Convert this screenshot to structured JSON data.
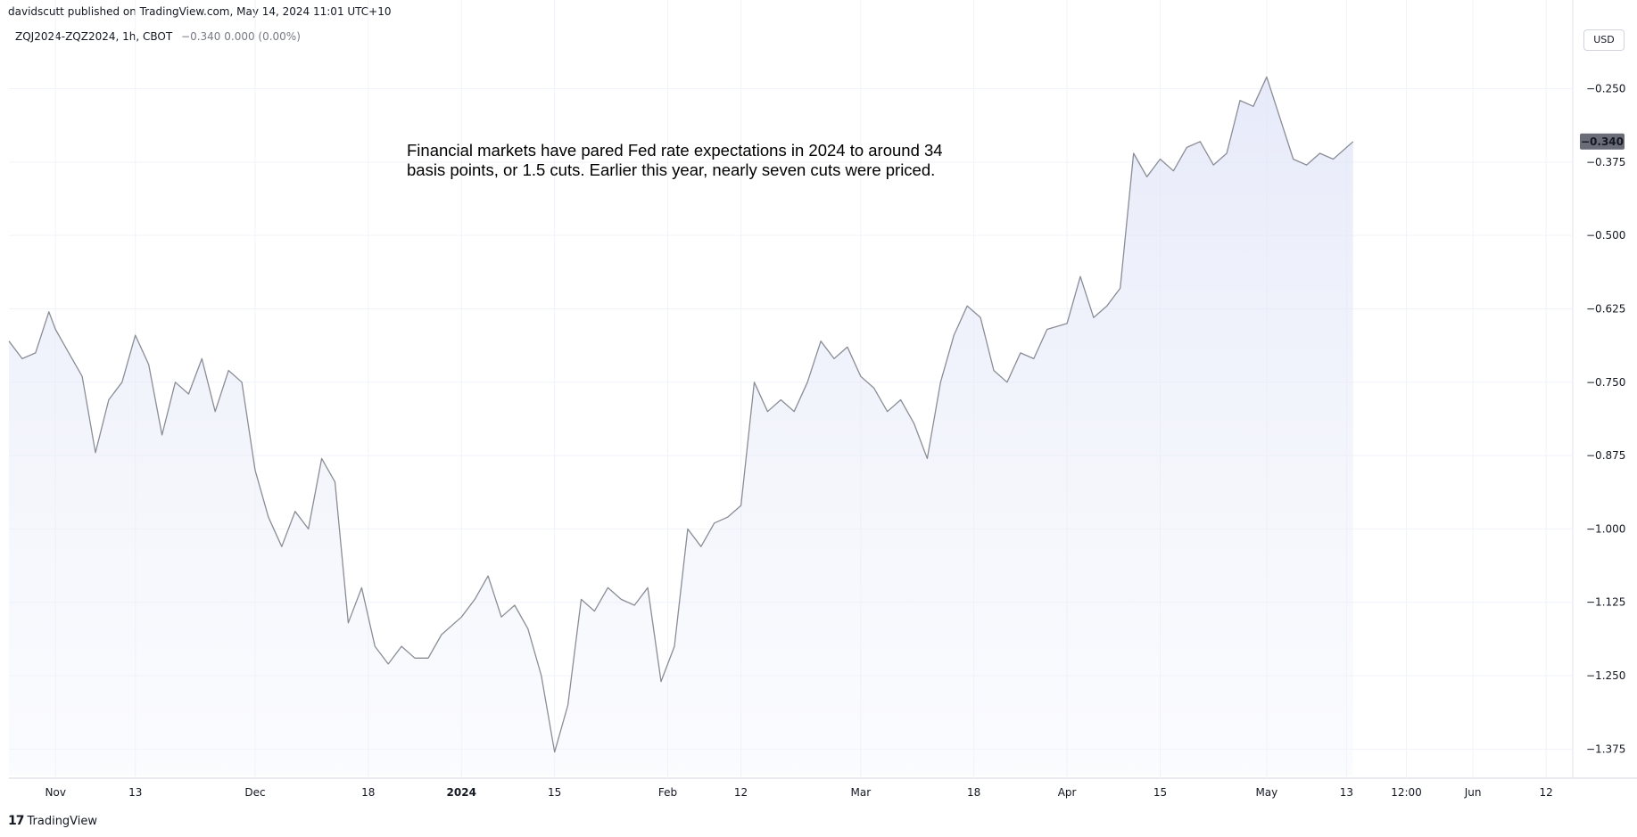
{
  "header": {
    "publisher": "davidscutt published on TradingView.com, May 14, 2024 11:01 UTC+10",
    "symbol": "ZQJ2024-ZQZ2024, 1h, CBOT",
    "values": "−0.340  0.000 (0.00%)",
    "currency": "USD"
  },
  "annotation": "Financial markets have pared Fed rate expectations in 2024 to around 34 basis points, or 1.5 cuts. Earlier this year, nearly seven cuts were priced.",
  "footer": {
    "logo_icon": "tradingview-logo-icon",
    "brand": "TradingView"
  },
  "chart_data": {
    "type": "area",
    "title": "",
    "xlabel": "",
    "ylabel": "",
    "ylim": [
      -1.42,
      -0.19
    ],
    "xlim": [
      "2023-10-25",
      "2024-06-16"
    ],
    "grid": true,
    "last_value_label": "−0.340",
    "y_ticks": [
      {
        "value": -0.25,
        "label": "−0.250"
      },
      {
        "value": -0.375,
        "label": "−0.375"
      },
      {
        "value": -0.5,
        "label": "−0.500"
      },
      {
        "value": -0.625,
        "label": "−0.625"
      },
      {
        "value": -0.75,
        "label": "−0.750"
      },
      {
        "value": -0.875,
        "label": "−0.875"
      },
      {
        "value": -1.0,
        "label": "−1.000"
      },
      {
        "value": -1.125,
        "label": "−1.125"
      },
      {
        "value": -1.25,
        "label": "−1.250"
      },
      {
        "value": -1.375,
        "label": "−1.375"
      }
    ],
    "x_ticks": [
      {
        "date": "2023-11-01",
        "label": "Nov",
        "bold": false
      },
      {
        "date": "2023-11-13",
        "label": "13",
        "bold": false
      },
      {
        "date": "2023-12-01",
        "label": "Dec",
        "bold": false
      },
      {
        "date": "2023-12-18",
        "label": "18",
        "bold": false
      },
      {
        "date": "2024-01-01",
        "label": "2024",
        "bold": true
      },
      {
        "date": "2024-01-15",
        "label": "15",
        "bold": false
      },
      {
        "date": "2024-02-01",
        "label": "Feb",
        "bold": false
      },
      {
        "date": "2024-02-12",
        "label": "12",
        "bold": false
      },
      {
        "date": "2024-03-01",
        "label": "Mar",
        "bold": false
      },
      {
        "date": "2024-03-18",
        "label": "18",
        "bold": false
      },
      {
        "date": "2024-04-01",
        "label": "Apr",
        "bold": false
      },
      {
        "date": "2024-04-15",
        "label": "15",
        "bold": false
      },
      {
        "date": "2024-05-01",
        "label": "May",
        "bold": false
      },
      {
        "date": "2024-05-13",
        "label": "13",
        "bold": false
      },
      {
        "date": "2024-05-22",
        "label": "12:00",
        "bold": false
      },
      {
        "date": "2024-06-01",
        "label": "Jun",
        "bold": false
      },
      {
        "date": "2024-06-12",
        "label": "12",
        "bold": false
      }
    ],
    "series": [
      {
        "x": [
          "2023-10-25",
          "2023-10-27",
          "2023-10-29",
          "2023-10-31",
          "2023-11-01",
          "2023-11-03",
          "2023-11-05",
          "2023-11-07",
          "2023-11-09",
          "2023-11-11",
          "2023-11-13",
          "2023-11-15",
          "2023-11-17",
          "2023-11-19",
          "2023-11-21",
          "2023-11-23",
          "2023-11-25",
          "2023-11-27",
          "2023-11-29",
          "2023-12-01",
          "2023-12-03",
          "2023-12-05",
          "2023-12-07",
          "2023-12-09",
          "2023-12-11",
          "2023-12-13",
          "2023-12-15",
          "2023-12-17",
          "2023-12-19",
          "2023-12-21",
          "2023-12-23",
          "2023-12-25",
          "2023-12-27",
          "2023-12-29",
          "2024-01-01",
          "2024-01-03",
          "2024-01-05",
          "2024-01-07",
          "2024-01-09",
          "2024-01-11",
          "2024-01-13",
          "2024-01-15",
          "2024-01-17",
          "2024-01-19",
          "2024-01-21",
          "2024-01-23",
          "2024-01-25",
          "2024-01-27",
          "2024-01-29",
          "2024-01-31",
          "2024-02-02",
          "2024-02-04",
          "2024-02-06",
          "2024-02-08",
          "2024-02-10",
          "2024-02-12",
          "2024-02-14",
          "2024-02-16",
          "2024-02-18",
          "2024-02-20",
          "2024-02-22",
          "2024-02-24",
          "2024-02-26",
          "2024-02-28",
          "2024-03-01",
          "2024-03-03",
          "2024-03-05",
          "2024-03-07",
          "2024-03-09",
          "2024-03-11",
          "2024-03-13",
          "2024-03-15",
          "2024-03-17",
          "2024-03-19",
          "2024-03-21",
          "2024-03-23",
          "2024-03-25",
          "2024-03-27",
          "2024-03-29",
          "2024-04-01",
          "2024-04-03",
          "2024-04-05",
          "2024-04-07",
          "2024-04-09",
          "2024-04-11",
          "2024-04-13",
          "2024-04-15",
          "2024-04-17",
          "2024-04-19",
          "2024-04-21",
          "2024-04-23",
          "2024-04-25",
          "2024-04-27",
          "2024-04-29",
          "2024-05-01",
          "2024-05-03",
          "2024-05-05",
          "2024-05-07",
          "2024-05-09",
          "2024-05-11",
          "2024-05-13",
          "2024-05-14"
        ],
        "y": [
          -0.68,
          -0.71,
          -0.7,
          -0.63,
          -0.66,
          -0.7,
          -0.74,
          -0.87,
          -0.78,
          -0.75,
          -0.67,
          -0.72,
          -0.84,
          -0.75,
          -0.77,
          -0.71,
          -0.8,
          -0.73,
          -0.75,
          -0.9,
          -0.98,
          -1.03,
          -0.97,
          -1.0,
          -0.88,
          -0.92,
          -1.16,
          -1.1,
          -1.2,
          -1.23,
          -1.2,
          -1.22,
          -1.22,
          -1.18,
          -1.15,
          -1.12,
          -1.08,
          -1.15,
          -1.13,
          -1.17,
          -1.25,
          -1.38,
          -1.3,
          -1.12,
          -1.14,
          -1.1,
          -1.12,
          -1.13,
          -1.1,
          -1.26,
          -1.2,
          -1.0,
          -1.03,
          -0.99,
          -0.98,
          -0.96,
          -0.75,
          -0.8,
          -0.78,
          -0.8,
          -0.75,
          -0.68,
          -0.71,
          -0.69,
          -0.74,
          -0.76,
          -0.8,
          -0.78,
          -0.82,
          -0.88,
          -0.75,
          -0.67,
          -0.62,
          -0.64,
          -0.73,
          -0.75,
          -0.7,
          -0.71,
          -0.66,
          -0.65,
          -0.57,
          -0.64,
          -0.62,
          -0.59,
          -0.36,
          -0.4,
          -0.37,
          -0.39,
          -0.35,
          -0.34,
          -0.38,
          -0.36,
          -0.27,
          -0.28,
          -0.23,
          -0.3,
          -0.37,
          -0.38,
          -0.36,
          -0.37,
          -0.35,
          -0.34
        ]
      }
    ]
  }
}
